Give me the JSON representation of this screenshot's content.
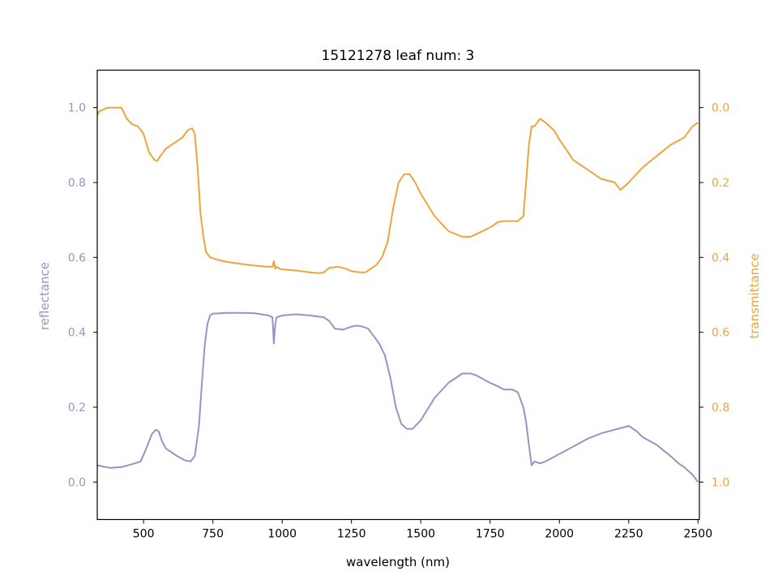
{
  "chart_data": {
    "type": "line",
    "title": "15121278 leaf num: 3",
    "xlabel": "wavelength (nm)",
    "xlim": [
      333,
      2505
    ],
    "x_ticks": [
      "500",
      "750",
      "1000",
      "1250",
      "1500",
      "1750",
      "2000",
      "2250",
      "2500"
    ],
    "x_tick_values": [
      500,
      750,
      1000,
      1250,
      1500,
      1750,
      2000,
      2250,
      2500
    ],
    "y_left": {
      "label": "reflectance",
      "color": "#9893c6",
      "ylim": [
        -0.1,
        1.1
      ],
      "ticks": [
        "0.0",
        "0.2",
        "0.4",
        "0.6",
        "0.8",
        "1.0"
      ],
      "tick_values": [
        0.0,
        0.2,
        0.4,
        0.6,
        0.8,
        1.0
      ]
    },
    "y_right": {
      "label": "transmittance",
      "color": "#eda43e",
      "ylim": [
        1.1,
        -0.1
      ],
      "inverted": true,
      "ticks": [
        "0.0",
        "0.2",
        "0.4",
        "0.6",
        "0.8",
        "1.0"
      ],
      "tick_values": [
        0.0,
        0.2,
        0.4,
        0.6,
        0.8,
        1.0
      ]
    },
    "grid": false,
    "series": [
      {
        "axis": "left",
        "color": "#9893c6",
        "x": [
          333,
          350,
          380,
          420,
          460,
          490,
          510,
          530,
          545,
          555,
          565,
          580,
          600,
          620,
          650,
          670,
          685,
          700,
          710,
          720,
          730,
          740,
          750,
          760,
          780,
          800,
          850,
          900,
          950,
          965,
          970,
          975,
          980,
          1000,
          1050,
          1100,
          1150,
          1170,
          1190,
          1220,
          1250,
          1270,
          1290,
          1310,
          1330,
          1350,
          1370,
          1390,
          1410,
          1430,
          1450,
          1470,
          1500,
          1550,
          1600,
          1650,
          1680,
          1700,
          1750,
          1780,
          1800,
          1830,
          1850,
          1870,
          1880,
          1890,
          1900,
          1910,
          1930,
          1950,
          2000,
          2050,
          2100,
          2150,
          2200,
          2250,
          2280,
          2300,
          2350,
          2400,
          2430,
          2450,
          2480,
          2500
        ],
        "y": [
          0.045,
          0.042,
          0.038,
          0.04,
          0.048,
          0.055,
          0.09,
          0.128,
          0.14,
          0.135,
          0.112,
          0.09,
          0.08,
          0.07,
          0.058,
          0.055,
          0.07,
          0.15,
          0.26,
          0.36,
          0.42,
          0.445,
          0.45,
          0.45,
          0.451,
          0.452,
          0.452,
          0.451,
          0.445,
          0.44,
          0.37,
          0.42,
          0.44,
          0.445,
          0.448,
          0.445,
          0.44,
          0.43,
          0.41,
          0.407,
          0.415,
          0.418,
          0.415,
          0.41,
          0.39,
          0.37,
          0.34,
          0.28,
          0.2,
          0.155,
          0.142,
          0.142,
          0.165,
          0.225,
          0.265,
          0.29,
          0.29,
          0.285,
          0.265,
          0.255,
          0.247,
          0.247,
          0.24,
          0.2,
          0.16,
          0.1,
          0.045,
          0.055,
          0.05,
          0.055,
          0.075,
          0.095,
          0.115,
          0.13,
          0.14,
          0.15,
          0.135,
          0.12,
          0.1,
          0.07,
          0.05,
          0.04,
          0.02,
          0.0
        ]
      },
      {
        "axis": "right",
        "color": "#eda43e",
        "x": [
          333,
          340,
          370,
          400,
          420,
          440,
          460,
          480,
          500,
          520,
          540,
          550,
          560,
          580,
          600,
          620,
          640,
          660,
          675,
          685,
          695,
          705,
          715,
          725,
          740,
          760,
          800,
          850,
          900,
          950,
          965,
          970,
          975,
          980,
          990,
          1000,
          1050,
          1100,
          1130,
          1150,
          1170,
          1200,
          1230,
          1250,
          1280,
          1300,
          1320,
          1340,
          1360,
          1380,
          1400,
          1420,
          1440,
          1460,
          1480,
          1500,
          1550,
          1600,
          1650,
          1680,
          1700,
          1750,
          1780,
          1800,
          1850,
          1870,
          1880,
          1890,
          1900,
          1910,
          1930,
          1950,
          1980,
          2000,
          2050,
          2100,
          2150,
          2200,
          2220,
          2250,
          2300,
          2350,
          2400,
          2450,
          2480,
          2500
        ],
        "y": [
          0.02,
          0.01,
          0.0,
          0.0,
          0.0,
          0.03,
          0.045,
          0.05,
          0.07,
          0.12,
          0.14,
          0.142,
          0.13,
          0.11,
          0.1,
          0.09,
          0.08,
          0.06,
          0.055,
          0.07,
          0.16,
          0.28,
          0.34,
          0.385,
          0.4,
          0.405,
          0.412,
          0.417,
          0.422,
          0.425,
          0.425,
          0.41,
          0.43,
          0.425,
          0.43,
          0.432,
          0.435,
          0.44,
          0.442,
          0.44,
          0.428,
          0.425,
          0.43,
          0.437,
          0.44,
          0.44,
          0.43,
          0.42,
          0.4,
          0.36,
          0.27,
          0.2,
          0.178,
          0.178,
          0.2,
          0.23,
          0.29,
          0.33,
          0.345,
          0.345,
          0.338,
          0.32,
          0.305,
          0.303,
          0.303,
          0.29,
          0.2,
          0.1,
          0.05,
          0.05,
          0.03,
          0.04,
          0.06,
          0.085,
          0.14,
          0.165,
          0.19,
          0.2,
          0.22,
          0.2,
          0.16,
          0.13,
          0.1,
          0.08,
          0.05,
          0.04
        ]
      }
    ]
  }
}
